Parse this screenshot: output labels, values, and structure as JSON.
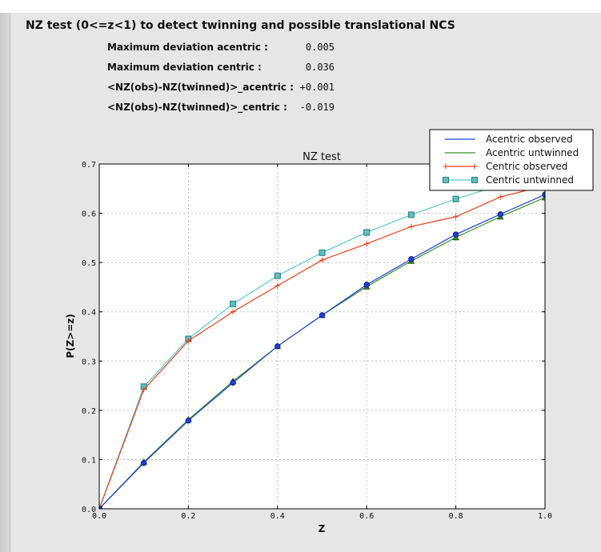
{
  "header": {
    "title": "NZ test (0<=z<1) to detect twinning and possible translational NCS"
  },
  "stats": [
    {
      "label": "Maximum deviation acentric :",
      "value": "0.005"
    },
    {
      "label": "Maximum deviation centric :",
      "value": "0.036"
    },
    {
      "label": "<NZ(obs)-NZ(twinned)>_acentric :",
      "value": "+0.001"
    },
    {
      "label": "<NZ(obs)-NZ(twinned)>_centric :",
      "value": "-0.019"
    }
  ],
  "chart_data": {
    "type": "line",
    "title": "NZ test",
    "xlabel": "Z",
    "ylabel": "P(Z>=z)",
    "xlim": [
      0,
      1
    ],
    "ylim": [
      0,
      0.7
    ],
    "xticks": [
      "0.0",
      "0.2",
      "0.4",
      "0.6",
      "0.8",
      "1.0"
    ],
    "yticks": [
      "0.0",
      "0.1",
      "0.2",
      "0.3",
      "0.4",
      "0.5",
      "0.6",
      "0.7"
    ],
    "grid": true,
    "legend": "top-right",
    "x": [
      0,
      0.1,
      0.2,
      0.3,
      0.4,
      0.5,
      0.6,
      0.7,
      0.8,
      0.9,
      1.0
    ],
    "series": [
      {
        "name": "Acentric observed",
        "color": "#1f3fdc",
        "marker": "circle",
        "values": [
          0,
          0.093,
          0.179,
          0.256,
          0.33,
          0.393,
          0.455,
          0.507,
          0.557,
          0.598,
          0.638
        ]
      },
      {
        "name": "Acentric untwinned",
        "color": "#3a8f2a",
        "marker": "triangle",
        "values": [
          0,
          0.095,
          0.181,
          0.259,
          0.33,
          0.393,
          0.451,
          0.503,
          0.551,
          0.593,
          0.632
        ]
      },
      {
        "name": "Centric observed",
        "color": "#e8401c",
        "marker": "plus",
        "values": [
          0,
          0.242,
          0.341,
          0.4,
          0.453,
          0.505,
          0.538,
          0.573,
          0.593,
          0.633,
          0.656
        ]
      },
      {
        "name": "Centric untwinned",
        "color": "#5cc8c8",
        "marker": "square",
        "values": [
          0,
          0.248,
          0.345,
          0.416,
          0.473,
          0.52,
          0.561,
          0.597,
          0.629,
          0.657,
          0.683
        ]
      }
    ]
  }
}
